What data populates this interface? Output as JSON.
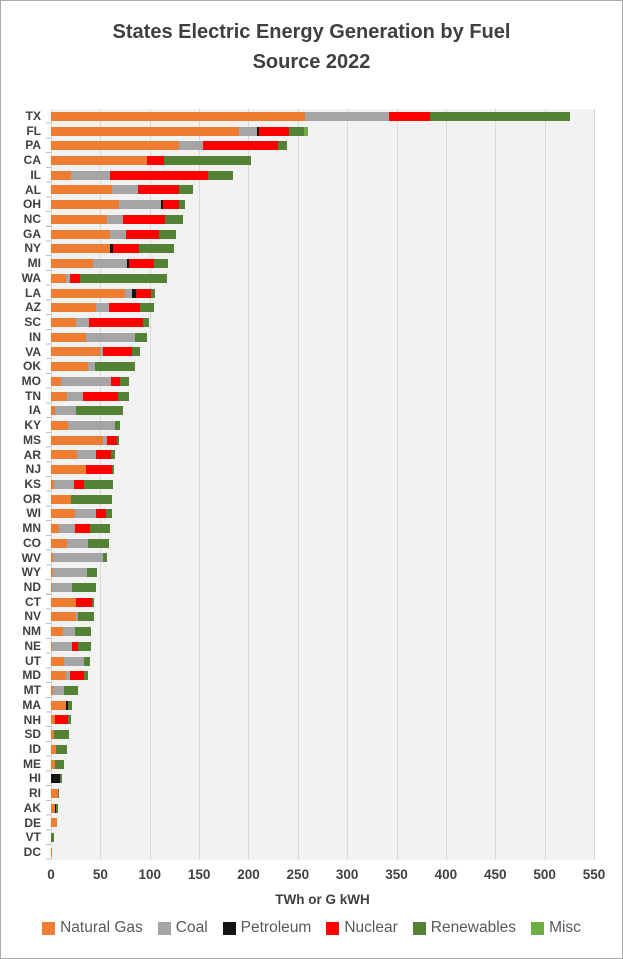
{
  "title_line1": "States Electric Energy  Generation by Fuel",
  "title_line2": "Source 2022",
  "chart_data": {
    "type": "bar",
    "orientation": "horizontal",
    "stacked": true,
    "title": "States Electric Energy  Generation by Fuel Source 2022",
    "xlabel": "TWh or G kWH",
    "ylabel": "",
    "xlim": [
      0,
      550
    ],
    "xticks": [
      0,
      50,
      100,
      150,
      200,
      250,
      300,
      350,
      400,
      450,
      500,
      550
    ],
    "grid": true,
    "legend_position": "bottom",
    "categories": [
      "TX",
      "FL",
      "PA",
      "CA",
      "IL",
      "AL",
      "OH",
      "NC",
      "GA",
      "NY",
      "MI",
      "WA",
      "LA",
      "AZ",
      "SC",
      "IN",
      "VA",
      "OK",
      "MO",
      "TN",
      "IA",
      "KY",
      "MS",
      "AR",
      "NJ",
      "KS",
      "OR",
      "WI",
      "MN",
      "CO",
      "WV",
      "WY",
      "ND",
      "CT",
      "NV",
      "NM",
      "NE",
      "UT",
      "MD",
      "MT",
      "MA",
      "NH",
      "SD",
      "ID",
      "ME",
      "HI",
      "RI",
      "AK",
      "DE",
      "VT",
      "DC"
    ],
    "series": [
      {
        "name": "Natural Gas",
        "color": "#ED7D31",
        "values": [
          257,
          190,
          130,
          97,
          20,
          62,
          69,
          57,
          60,
          60,
          43,
          15.5,
          74.5,
          45.5,
          25,
          35,
          49.5,
          37,
          10,
          16.5,
          4.5,
          17.5,
          53,
          26.5,
          35,
          3,
          20.5,
          24,
          8,
          16.5,
          2,
          2.5,
          1.5,
          25,
          25,
          12,
          1.5,
          13,
          15.5,
          2,
          15.5,
          4,
          3,
          5.5,
          4.5,
          0,
          7.5,
          4,
          6,
          0,
          0.3
        ]
      },
      {
        "name": "Coal",
        "color": "#A5A5A5",
        "values": [
          85,
          19,
          24,
          0,
          40,
          26,
          42,
          16,
          16,
          0,
          34,
          3.5,
          7.5,
          13.5,
          13,
          50.5,
          3,
          8,
          51,
          16,
          21,
          47,
          4,
          19.5,
          0,
          20.5,
          0,
          21.5,
          16.5,
          21,
          51,
          33.5,
          19.5,
          0,
          2.5,
          12,
          20,
          20.5,
          3.5,
          11.5,
          0,
          0,
          0,
          0,
          0,
          0,
          0,
          0,
          0,
          0,
          0
        ]
      },
      {
        "name": "Petroleum",
        "color": "#141414",
        "values": [
          0,
          2,
          0,
          0,
          0,
          0,
          2.5,
          0,
          0,
          2.5,
          2,
          0,
          4.5,
          0,
          0,
          0,
          0,
          0,
          0,
          0,
          0,
          0,
          0,
          0,
          0,
          0,
          0,
          0,
          0,
          0,
          0,
          0,
          0,
          0,
          0,
          0,
          0,
          0,
          0,
          0,
          2,
          0,
          0,
          0,
          0,
          9,
          0,
          1,
          0,
          0,
          0
        ]
      },
      {
        "name": "Nuclear",
        "color": "#FF0000",
        "values": [
          42,
          30,
          76,
          17.5,
          99,
          42,
          16,
          42,
          33.5,
          27,
          25,
          10,
          15,
          31,
          55,
          0,
          29.5,
          0,
          9,
          35.5,
          0,
          0,
          10,
          14.5,
          27,
          10,
          0,
          10,
          15.5,
          0,
          0,
          0,
          0,
          17,
          0,
          0,
          6,
          0,
          14.5,
          0,
          0,
          13,
          0,
          0,
          0,
          0,
          0,
          0,
          0,
          0,
          0
        ]
      },
      {
        "name": "Renewables",
        "color": "#548235",
        "values": [
          142,
          15.5,
          9,
          88,
          25,
          13.5,
          6,
          19,
          17.5,
          35,
          14.5,
          88,
          3.5,
          14,
          6,
          12,
          8,
          40,
          9,
          11,
          47.5,
          5,
          1.5,
          4.5,
          1.5,
          29.5,
          41.5,
          6,
          19.5,
          21.5,
          4,
          10.5,
          24.5,
          1.5,
          16,
          17,
          13.5,
          6.5,
          3.5,
          14,
          4,
          3,
          15.5,
          11,
          8.5,
          2.5,
          0.5,
          2,
          0,
          3.5,
          0
        ]
      },
      {
        "name": "Misc",
        "color": "#70AD47",
        "values": [
          0,
          3.5,
          0,
          0,
          0,
          0,
          0,
          0,
          0,
          0,
          0,
          0,
          0,
          0,
          0,
          0,
          0,
          0,
          0,
          0,
          0,
          0,
          0,
          0,
          0,
          0,
          0,
          0,
          0,
          0,
          0,
          0,
          0,
          0,
          0,
          0,
          0,
          0,
          0,
          0,
          0,
          0,
          0,
          0,
          0,
          0,
          0,
          0,
          0,
          0,
          0
        ]
      }
    ]
  }
}
